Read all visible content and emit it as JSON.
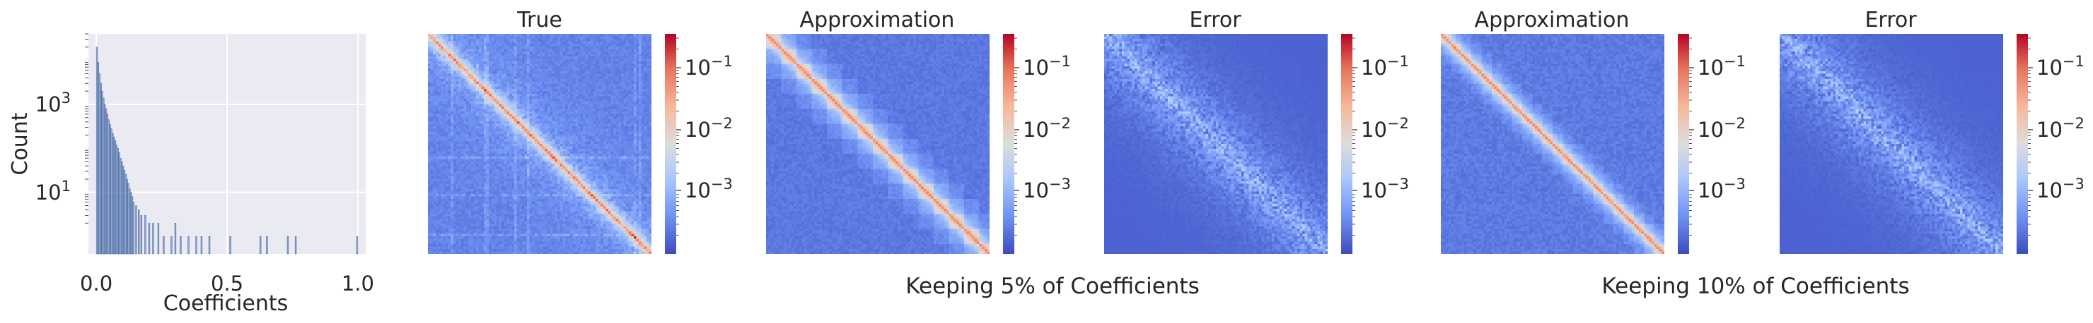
{
  "chart_data": [
    {
      "type": "bar",
      "kind": "histogram",
      "xlabel": "Coefficients",
      "ylabel": "Count",
      "yscale": "log",
      "xlim": [
        -0.03,
        1.03
      ],
      "ylim": [
        0.4,
        40000
      ],
      "xticks": [
        {
          "value": 0.0,
          "label": "0.0"
        },
        {
          "value": 0.5,
          "label": "0.5"
        },
        {
          "value": 1.0,
          "label": "1.0"
        }
      ],
      "yticks": [
        {
          "value": 10,
          "label": "10",
          "exp": "1"
        },
        {
          "value": 1000,
          "label": "10",
          "exp": "3"
        }
      ],
      "bin_width": 0.005,
      "bin_starts": [
        0.0,
        0.005,
        0.01,
        0.015,
        0.02,
        0.025,
        0.03,
        0.035,
        0.04,
        0.045,
        0.05,
        0.055,
        0.06,
        0.065,
        0.07,
        0.075,
        0.08,
        0.085,
        0.09,
        0.095,
        0.1,
        0.105,
        0.11,
        0.115,
        0.12,
        0.125,
        0.13,
        0.135,
        0.14,
        0.15,
        0.16,
        0.17,
        0.185,
        0.2,
        0.215,
        0.235,
        0.255,
        0.285,
        0.3,
        0.32,
        0.35,
        0.38,
        0.4,
        0.43,
        0.51,
        0.625,
        0.65,
        0.73,
        0.76,
        0.995
      ],
      "counts": [
        20000,
        9000,
        5000,
        3000,
        2000,
        1400,
        1000,
        800,
        600,
        450,
        350,
        280,
        220,
        180,
        150,
        120,
        100,
        80,
        60,
        50,
        40,
        32,
        26,
        20,
        16,
        12,
        10,
        8,
        6,
        5,
        4,
        3,
        3,
        2,
        2,
        2,
        1,
        1,
        2,
        1,
        1,
        1,
        1,
        1,
        1,
        1,
        1,
        1,
        1,
        1
      ]
    },
    {
      "type": "heatmap",
      "title": "True",
      "colorbar": {
        "scale": "log",
        "ticks": [
          {
            "label": "10",
            "exp": "−1"
          },
          {
            "label": "10",
            "exp": "−2"
          },
          {
            "label": "10",
            "exp": "−3"
          }
        ]
      }
    },
    {
      "type": "heatmap",
      "title": "Approximation",
      "group": "Keeping 5% of Coefficients",
      "colorbar": {
        "scale": "log",
        "ticks": [
          {
            "label": "10",
            "exp": "−1"
          },
          {
            "label": "10",
            "exp": "−2"
          },
          {
            "label": "10",
            "exp": "−3"
          }
        ]
      }
    },
    {
      "type": "heatmap",
      "title": "Error",
      "group": "Keeping 5% of Coefficients",
      "colorbar": {
        "scale": "log",
        "ticks": [
          {
            "label": "10",
            "exp": "−1"
          },
          {
            "label": "10",
            "exp": "−2"
          },
          {
            "label": "10",
            "exp": "−3"
          }
        ]
      }
    },
    {
      "type": "heatmap",
      "title": "Approximation",
      "group": "Keeping 10% of Coefficients",
      "colorbar": {
        "scale": "log",
        "ticks": [
          {
            "label": "10",
            "exp": "−1"
          },
          {
            "label": "10",
            "exp": "−2"
          },
          {
            "label": "10",
            "exp": "−3"
          }
        ]
      }
    },
    {
      "type": "heatmap",
      "title": "Error",
      "group": "Keeping 10% of Coefficients",
      "colorbar": {
        "scale": "log",
        "ticks": [
          {
            "label": "10",
            "exp": "−1"
          },
          {
            "label": "10",
            "exp": "−2"
          },
          {
            "label": "10",
            "exp": "−3"
          }
        ]
      }
    }
  ],
  "captions": {
    "group1": "Keeping 5% of Coefficients",
    "group2": "Keeping 10% of Coefficients"
  },
  "colors": {
    "hist_bg": "#eaeaf2",
    "hist_bar": "#4c72b0",
    "cmap": [
      "#3b4cc0",
      "#6f92f3",
      "#aac7fd",
      "#dddcdc",
      "#f7b89c",
      "#e7745b",
      "#b40426"
    ]
  }
}
